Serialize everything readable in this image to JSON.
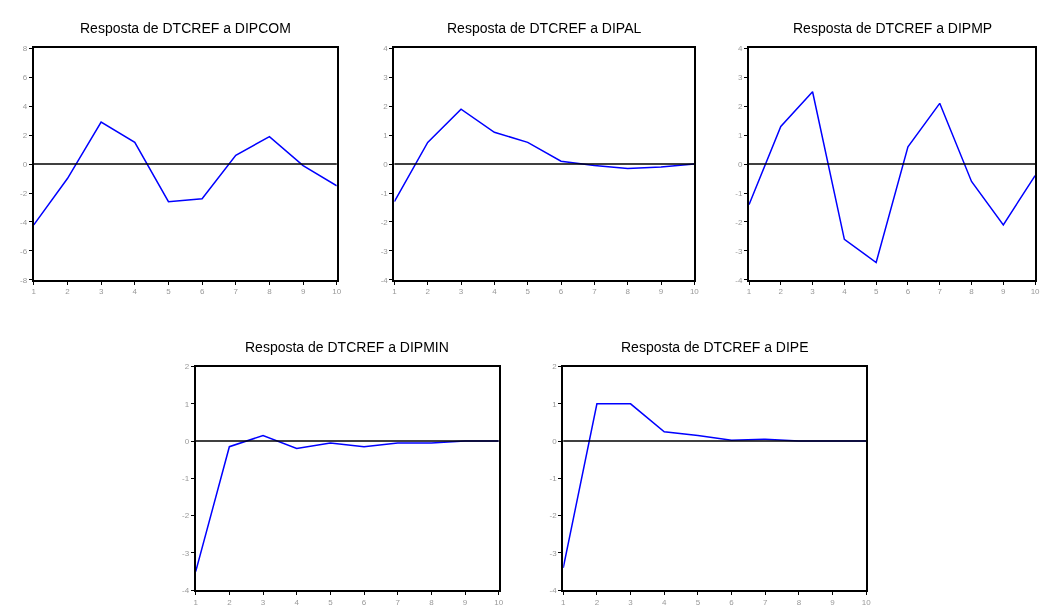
{
  "chart_data": [
    {
      "type": "line",
      "title": "Resposta de DTCREF a DIPCOM",
      "x": [
        1,
        2,
        3,
        4,
        5,
        6,
        7,
        8,
        9,
        10
      ],
      "series": [
        {
          "color": "#0000ff",
          "values": [
            -4.2,
            -1.0,
            2.9,
            1.5,
            -2.6,
            -2.4,
            0.6,
            1.9,
            -0.1,
            -1.5
          ]
        }
      ],
      "xlim": [
        1,
        10
      ],
      "xticks": [
        1,
        2,
        3,
        4,
        5,
        6,
        7,
        8,
        9,
        10
      ],
      "ylim": [
        -8,
        8
      ],
      "yticks": [
        -8,
        -6,
        -4,
        -2,
        0,
        2,
        4,
        6,
        8
      ],
      "ref_lines": [
        {
          "axis": "y",
          "value": 0,
          "color": "#000000"
        }
      ]
    },
    {
      "type": "line",
      "title": "Resposta de DTCREF a DIPAL",
      "x": [
        1,
        2,
        3,
        4,
        5,
        6,
        7,
        8,
        9,
        10
      ],
      "series": [
        {
          "color": "#0000ff",
          "values": [
            -1.3,
            0.75,
            1.9,
            1.1,
            0.75,
            0.1,
            -0.05,
            -0.15,
            -0.1,
            0.0
          ]
        }
      ],
      "xlim": [
        1,
        10
      ],
      "xticks": [
        1,
        2,
        3,
        4,
        5,
        6,
        7,
        8,
        9,
        10
      ],
      "ylim": [
        -4,
        4
      ],
      "yticks": [
        -4,
        -3,
        -2,
        -1,
        0,
        1,
        2,
        3,
        4
      ],
      "ref_lines": [
        {
          "axis": "y",
          "value": 0,
          "color": "#000000"
        }
      ]
    },
    {
      "type": "line",
      "title": "Resposta de DTCREF a DIPMP",
      "x": [
        1,
        2,
        3,
        4,
        5,
        6,
        7,
        8,
        9,
        10
      ],
      "series": [
        {
          "color": "#0000ff",
          "values": [
            -1.4,
            1.3,
            2.5,
            -2.6,
            -3.4,
            0.6,
            2.1,
            -0.6,
            -2.1,
            -0.4
          ]
        }
      ],
      "xlim": [
        1,
        10
      ],
      "xticks": [
        1,
        2,
        3,
        4,
        5,
        6,
        7,
        8,
        9,
        10
      ],
      "ylim": [
        -4,
        4
      ],
      "yticks": [
        -4,
        -3,
        -2,
        -1,
        0,
        1,
        2,
        3,
        4
      ],
      "ref_lines": [
        {
          "axis": "y",
          "value": 0,
          "color": "#000000"
        }
      ]
    },
    {
      "type": "line",
      "title": "Resposta de DTCREF a DIPMIN",
      "x": [
        1,
        2,
        3,
        4,
        5,
        6,
        7,
        8,
        9,
        10
      ],
      "series": [
        {
          "color": "#0000ff",
          "values": [
            -3.5,
            -0.15,
            0.15,
            -0.2,
            -0.05,
            -0.15,
            -0.05,
            -0.05,
            0.0,
            0.0
          ]
        }
      ],
      "xlim": [
        1,
        10
      ],
      "xticks": [
        1,
        2,
        3,
        4,
        5,
        6,
        7,
        8,
        9,
        10
      ],
      "ylim": [
        -4,
        2
      ],
      "yticks": [
        -4,
        -3,
        -2,
        -1,
        0,
        1,
        2
      ],
      "ref_lines": [
        {
          "axis": "y",
          "value": 0,
          "color": "#000000"
        }
      ]
    },
    {
      "type": "line",
      "title": "Resposta de DTCREF a DIPE",
      "x": [
        1,
        2,
        3,
        4,
        5,
        6,
        7,
        8,
        9,
        10
      ],
      "series": [
        {
          "color": "#0000ff",
          "values": [
            -3.4,
            1.0,
            1.0,
            0.25,
            0.15,
            0.02,
            0.05,
            0.0,
            0.0,
            0.0
          ]
        }
      ],
      "xlim": [
        1,
        10
      ],
      "xticks": [
        1,
        2,
        3,
        4,
        5,
        6,
        7,
        8,
        9,
        10
      ],
      "ylim": [
        -4,
        2
      ],
      "yticks": [
        -4,
        -3,
        -2,
        -1,
        0,
        1,
        2
      ],
      "ref_lines": [
        {
          "axis": "y",
          "value": 0,
          "color": "#000000"
        }
      ]
    }
  ]
}
